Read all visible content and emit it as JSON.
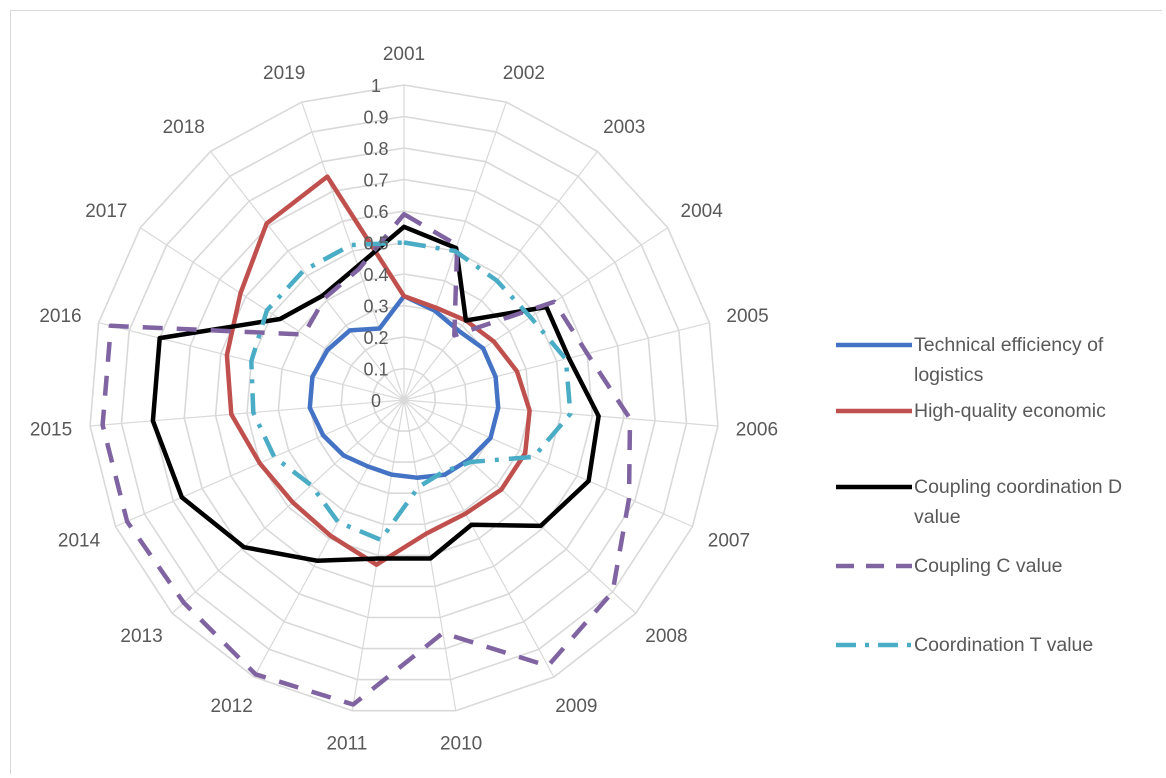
{
  "chart_data": {
    "type": "radar",
    "categories": [
      "2001",
      "2002",
      "2003",
      "2004",
      "2005",
      "2006",
      "2007",
      "2008",
      "2009",
      "2010",
      "2011",
      "2012",
      "2013",
      "2014",
      "2015",
      "2016",
      "2017",
      "2018",
      "2019"
    ],
    "rlim": [
      0,
      1
    ],
    "rticks": [
      "0",
      "0.1",
      "0.2",
      "0.3",
      "0.4",
      "0.5",
      "0.6",
      "0.7",
      "0.8",
      "0.9",
      "1"
    ],
    "grid": true,
    "legend_position": "right",
    "series": [
      {
        "name": "Technical efficiency of logistics",
        "color": "#4472c4",
        "dash": "solid",
        "values": [
          0.33,
          0.3,
          0.28,
          0.3,
          0.3,
          0.3,
          0.3,
          0.28,
          0.27,
          0.25,
          0.24,
          0.24,
          0.26,
          0.28,
          0.3,
          0.3,
          0.29,
          0.28,
          0.24
        ]
      },
      {
        "name": "High-quality economic",
        "color": "#c0504d",
        "dash": "solid",
        "values": [
          0.33,
          0.31,
          0.32,
          0.34,
          0.37,
          0.4,
          0.42,
          0.42,
          0.41,
          0.43,
          0.53,
          0.49,
          0.48,
          0.5,
          0.55,
          0.58,
          0.62,
          0.71,
          0.75
        ]
      },
      {
        "name": "Coupling coordination D value",
        "color": "#000000",
        "dash": "solid",
        "values": [
          0.55,
          0.51,
          0.32,
          0.54,
          0.54,
          0.62,
          0.64,
          0.59,
          0.45,
          0.51,
          0.51,
          0.58,
          0.69,
          0.77,
          0.8,
          0.8,
          0.47,
          0.42,
          0.45
        ]
      },
      {
        "name": "Coupling C value",
        "color": "#8064a2",
        "dash": "dash",
        "values": [
          0.59,
          0.52,
          0.26,
          0.57,
          0.6,
          0.72,
          0.78,
          0.9,
          0.96,
          0.75,
          0.98,
          0.99,
          0.95,
          0.96,
          0.96,
          0.96,
          0.38,
          0.41,
          0.44
        ]
      },
      {
        "name": "Coordination T value",
        "color": "#4bacc6",
        "dash": "dashdot",
        "values": [
          0.5,
          0.5,
          0.48,
          0.48,
          0.53,
          0.53,
          0.45,
          0.29,
          0.26,
          0.28,
          0.45,
          0.44,
          0.4,
          0.45,
          0.48,
          0.5,
          0.52,
          0.52,
          0.52
        ]
      }
    ]
  }
}
